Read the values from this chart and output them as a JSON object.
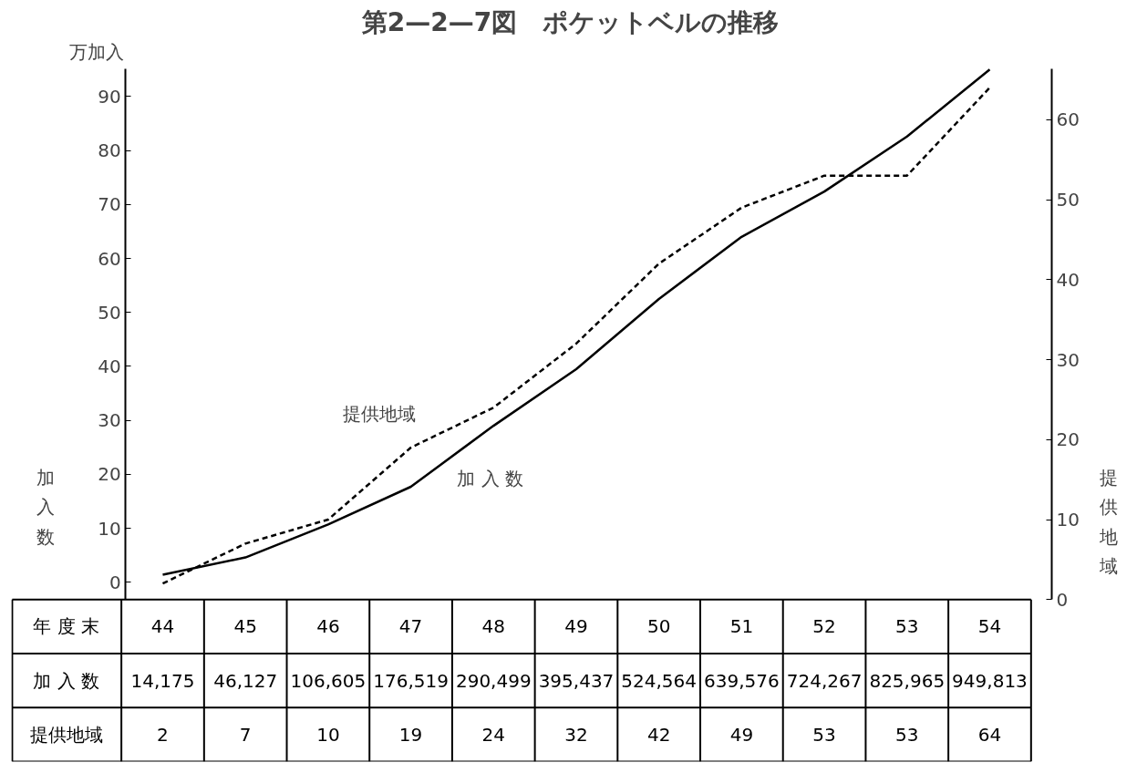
{
  "chart_data": {
    "type": "line",
    "title": "第2—2—7図　ポケットベルの推移",
    "xlabel": "年 度 末",
    "ylabel": "加入数",
    "y2label": "提供地域",
    "annotations": [
      "万加入",
      "14,175",
      "46,127",
      "106,605",
      "176,519",
      "290,499",
      "395,437",
      "524,564",
      "639,576",
      "724,267",
      "825,965",
      "949,813"
    ],
    "categories": [
      "44",
      "45",
      "46",
      "47",
      "48",
      "49",
      "50",
      "51",
      "52",
      "53",
      "54"
    ],
    "series": [
      {
        "name": "加 入 数",
        "color": "#000000",
        "line_style": "solid",
        "values": [
          1.4,
          4.6,
          10.7,
          17.7,
          29.0,
          39.5,
          52.5,
          64.0,
          72.4,
          82.6,
          95.0
        ]
      },
      {
        "name": "提供地域",
        "color": "#000000",
        "line_style": "dashed",
        "axis": "y2",
        "values": [
          2,
          7,
          10,
          19,
          24,
          32,
          42,
          49,
          53,
          53,
          64
        ],
        "value_labels": [
          "2",
          "7",
          "10",
          "19",
          "24",
          "32",
          "42",
          "49",
          "53",
          "53",
          "64"
        ]
      }
    ],
    "ylim": [
      -3.2,
      95.2
    ],
    "yticks": [
      0,
      10,
      20,
      30,
      40,
      50,
      60,
      70,
      80,
      90
    ],
    "y2lim": [
      0,
      66.4
    ],
    "y2ticks": [
      0,
      10,
      20,
      30,
      40,
      50,
      60
    ],
    "grid": false,
    "legend": false,
    "marker": "none"
  }
}
